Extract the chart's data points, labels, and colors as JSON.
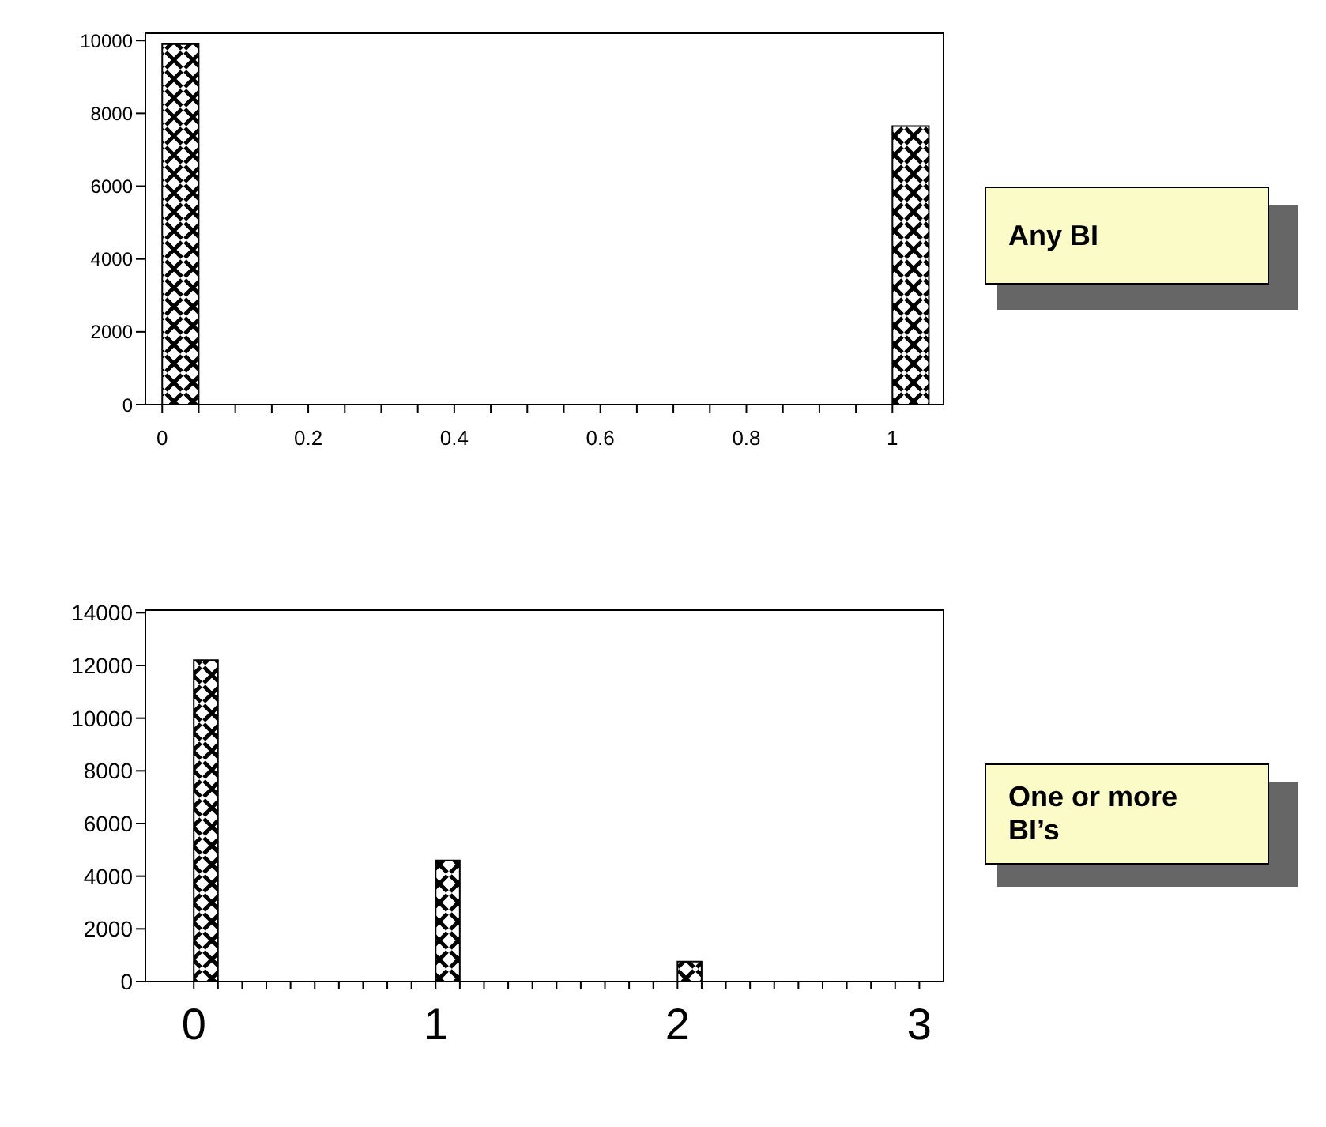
{
  "chart_data": [
    {
      "type": "histogram",
      "color": "#000000",
      "bins": [
        0,
        0.05,
        0.1,
        0.15,
        0.2,
        0.25,
        0.3,
        0.35,
        0.4,
        0.45,
        0.5,
        0.55,
        0.6,
        0.65,
        0.7,
        0.75,
        0.8,
        0.85,
        0.9,
        0.95,
        1,
        1.05
      ],
      "values": [
        9900,
        0,
        0,
        0,
        0,
        0,
        0,
        0,
        0,
        0,
        0,
        0,
        0,
        0,
        0,
        0,
        0,
        0,
        0,
        0,
        7650
      ],
      "xlim": [
        -0.023,
        1.07
      ],
      "ylim": [
        0,
        10200
      ],
      "xticks": [
        0,
        {
          "value": 0.05,
          "label": null
        },
        {
          "value": 0.1,
          "label": null
        },
        {
          "value": 0.15,
          "label": null
        },
        0.2,
        {
          "value": 0.25,
          "label": null
        },
        {
          "value": 0.3,
          "label": null
        },
        {
          "value": 0.35,
          "label": null
        },
        0.4,
        {
          "value": 0.45,
          "label": null
        },
        {
          "value": 0.5,
          "label": null
        },
        {
          "value": 0.55,
          "label": null
        },
        0.6,
        {
          "value": 0.65,
          "label": null
        },
        {
          "value": 0.7,
          "label": null
        },
        {
          "value": 0.75,
          "label": null
        },
        0.8,
        {
          "value": 0.85,
          "label": null
        },
        {
          "value": 0.9,
          "label": null
        },
        {
          "value": 0.95,
          "label": null
        },
        1
      ],
      "yticks": [
        0,
        2000,
        4000,
        6000,
        8000,
        10000
      ],
      "annotations": [
        "Any BI"
      ]
    },
    {
      "type": "histogram",
      "color": "#000000",
      "bins": [
        0,
        0.1,
        0.2,
        0.3,
        0.4,
        0.5,
        0.6,
        0.7,
        0.8,
        0.9,
        1,
        1.1,
        1.2,
        1.3,
        1.4,
        1.5,
        1.6,
        1.7,
        1.8,
        1.9,
        2,
        2.1
      ],
      "values": [
        12200,
        0,
        0,
        0,
        0,
        0,
        0,
        0,
        0,
        0,
        4600,
        0,
        0,
        0,
        0,
        0,
        0,
        0,
        0,
        0,
        760
      ],
      "xlim": [
        -0.2,
        3.1
      ],
      "ylim": [
        0,
        14100
      ],
      "xticks": [
        0,
        {
          "value": 0.1,
          "label": null
        },
        {
          "value": 0.2,
          "label": null
        },
        {
          "value": 0.3,
          "label": null
        },
        {
          "value": 0.4,
          "label": null
        },
        {
          "value": 0.5,
          "label": null
        },
        {
          "value": 0.6,
          "label": null
        },
        {
          "value": 0.7,
          "label": null
        },
        {
          "value": 0.8,
          "label": null
        },
        {
          "value": 0.9,
          "label": null
        },
        1,
        {
          "value": 1.1,
          "label": null
        },
        {
          "value": 1.2,
          "label": null
        },
        {
          "value": 1.3,
          "label": null
        },
        {
          "value": 1.4,
          "label": null
        },
        {
          "value": 1.5,
          "label": null
        },
        {
          "value": 1.6,
          "label": null
        },
        {
          "value": 1.7,
          "label": null
        },
        {
          "value": 1.8,
          "label": null
        },
        {
          "value": 1.9,
          "label": null
        },
        2,
        {
          "value": 2.1,
          "label": null
        },
        {
          "value": 2.2,
          "label": null
        },
        {
          "value": 2.3,
          "label": null
        },
        {
          "value": 2.4,
          "label": null
        },
        {
          "value": 2.5,
          "label": null
        },
        {
          "value": 2.6,
          "label": null
        },
        {
          "value": 2.7,
          "label": null
        },
        {
          "value": 2.8,
          "label": null
        },
        {
          "value": 2.9,
          "label": null
        },
        3
      ],
      "yticks": [
        0,
        2000,
        4000,
        6000,
        8000,
        10000,
        12000,
        14000
      ],
      "annotations": [
        "One or more BI’s"
      ]
    }
  ]
}
